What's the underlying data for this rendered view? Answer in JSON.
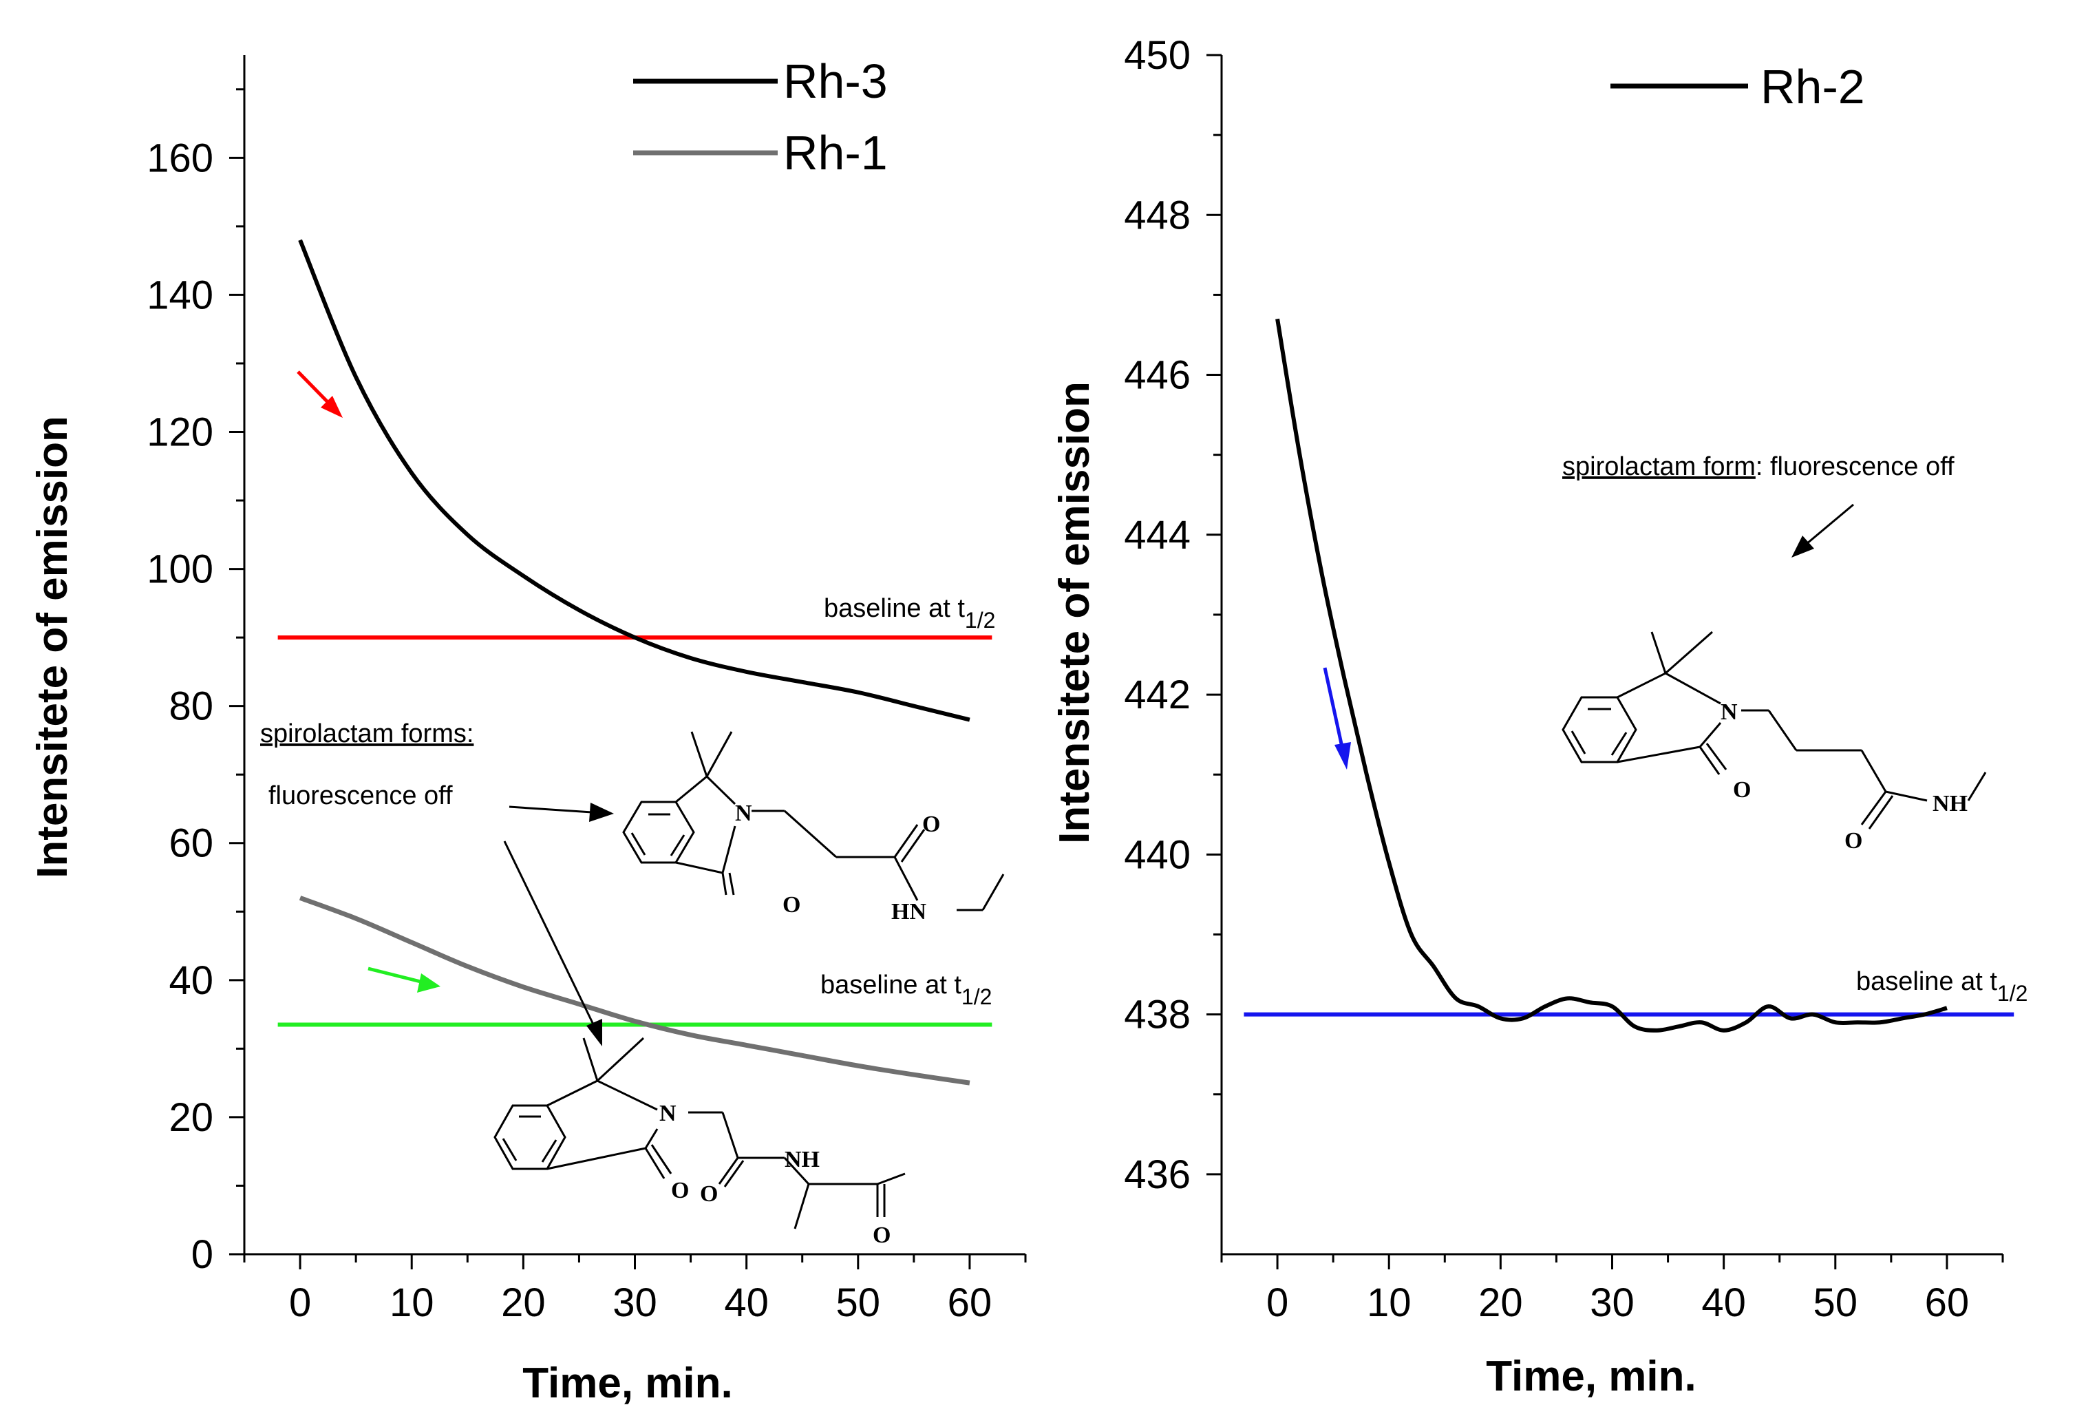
{
  "chart_data": [
    {
      "type": "line",
      "xlabel": "Time, min.",
      "ylabel": "Intensitete of emission",
      "xlim": [
        -5,
        65
      ],
      "ylim": [
        0,
        175
      ],
      "xticks": [
        0,
        10,
        20,
        30,
        40,
        50,
        60
      ],
      "yticks": [
        0,
        20,
        40,
        60,
        80,
        100,
        120,
        140,
        160
      ],
      "series": [
        {
          "name": "Rh-3",
          "color": "#000000",
          "x": [
            0,
            5,
            10,
            15,
            20,
            25,
            30,
            35,
            40,
            45,
            50,
            55,
            60
          ],
          "y": [
            148,
            128,
            114,
            105,
            99,
            94,
            90,
            87,
            85,
            83.5,
            82,
            80,
            78
          ]
        },
        {
          "name": "Rh-1",
          "color": "#707070",
          "x": [
            0,
            5,
            10,
            15,
            20,
            25,
            30,
            35,
            40,
            45,
            50,
            55,
            60
          ],
          "y": [
            52,
            49,
            45.5,
            42,
            39,
            36.5,
            34,
            32,
            30.5,
            29,
            27.5,
            26.2,
            25
          ]
        }
      ],
      "baselines": [
        {
          "name": "baseline-rh3",
          "value": 90,
          "x": [
            -2,
            62
          ],
          "color": "#ff0000",
          "label": "baseline at t",
          "subscript": "1/2"
        },
        {
          "name": "baseline-rh1",
          "value": 33.5,
          "x": [
            -2,
            62
          ],
          "color": "#22ee22",
          "label": "baseline at t",
          "subscript": "1/2"
        }
      ],
      "annotations": {
        "title": "spirolactam forms:",
        "subtitle": "fluorescence off",
        "chem_labels": [
          "N",
          "O",
          "O",
          "HN",
          "N",
          "O",
          "O",
          "NH",
          "O"
        ]
      },
      "arrows": [
        {
          "name": "red-arrow",
          "color": "#ff0000"
        },
        {
          "name": "green-arrow",
          "color": "#22ee22"
        }
      ]
    },
    {
      "type": "line",
      "xlabel": "Time, min.",
      "ylabel": "Intensitete of emission",
      "xlim": [
        -5,
        65
      ],
      "ylim": [
        435,
        450
      ],
      "xticks": [
        0,
        10,
        20,
        30,
        40,
        50,
        60
      ],
      "yticks": [
        436,
        438,
        440,
        442,
        444,
        446,
        448,
        450
      ],
      "series": [
        {
          "name": "Rh-2",
          "color": "#000000",
          "x": [
            0,
            2,
            4,
            6,
            8,
            10,
            12,
            14,
            16,
            18,
            20,
            22,
            24,
            26,
            28,
            30,
            32,
            34,
            36,
            38,
            40,
            42,
            44,
            46,
            48,
            50,
            52,
            54,
            56,
            58,
            60
          ],
          "y": [
            446.7,
            445.0,
            443.5,
            442.2,
            441.0,
            439.9,
            439.0,
            438.6,
            438.2,
            438.1,
            437.95,
            437.95,
            438.1,
            438.2,
            438.15,
            438.1,
            437.85,
            437.8,
            437.85,
            437.9,
            437.8,
            437.9,
            438.1,
            437.95,
            438.0,
            437.9,
            437.9,
            437.9,
            437.95,
            438.0,
            438.08
          ]
        }
      ],
      "baselines": [
        {
          "name": "baseline-rh2",
          "value": 438,
          "x": [
            -3,
            66
          ],
          "color": "#1515ee",
          "label": "baseline at t",
          "subscript": "1/2"
        }
      ],
      "annotations": {
        "title": "spirolactam form",
        "title_suffix": ": fluorescence off",
        "chem_labels": [
          "N",
          "O",
          "O",
          "NH"
        ]
      },
      "arrows": [
        {
          "name": "blue-arrow",
          "color": "#1515ee"
        }
      ]
    }
  ]
}
